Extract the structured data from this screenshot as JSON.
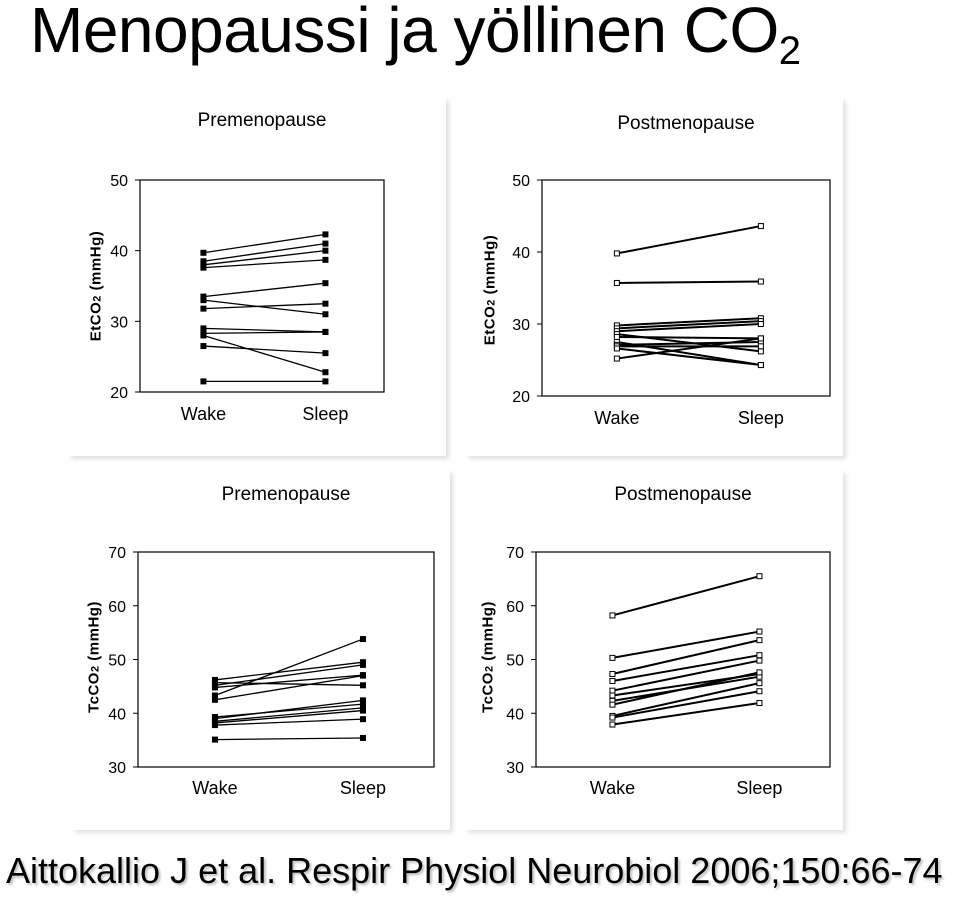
{
  "title": {
    "main": "Menopaussi ja yöllinen CO",
    "subscript": "2"
  },
  "citation": "Aittokallio J et al. Respir Physiol Neurobiol 2006;150:66-74",
  "colors": {
    "line": "#000000",
    "marker_filled": "#000000",
    "marker_open": "#ffffff",
    "highlight": "#800080"
  },
  "chart_data": [
    {
      "type": "line",
      "title": "Premenopause",
      "ylabel": "EtCO2 (mmHg)",
      "ylabel_parts": [
        "EtCO",
        "2",
        " (mmHg)"
      ],
      "categories": [
        "Wake",
        "Sleep"
      ],
      "ylim": [
        20,
        50
      ],
      "yticks": [
        "20",
        "30",
        "40",
        "50"
      ],
      "marker": "filled",
      "series": [
        {
          "values": [
            39.7,
            42.3
          ]
        },
        {
          "values": [
            38.5,
            41.0
          ]
        },
        {
          "values": [
            38.0,
            40.0
          ]
        },
        {
          "values": [
            37.6,
            38.7
          ]
        },
        {
          "values": [
            33.5,
            35.4
          ]
        },
        {
          "values": [
            33.0,
            31.0
          ]
        },
        {
          "values": [
            31.8,
            32.5
          ]
        },
        {
          "values": [
            29.0,
            28.5
          ]
        },
        {
          "values": [
            28.3,
            28.5
          ]
        },
        {
          "values": [
            28.0,
            22.8
          ]
        },
        {
          "values": [
            26.5,
            25.5
          ]
        },
        {
          "values": [
            21.5,
            21.5
          ]
        }
      ]
    },
    {
      "type": "line",
      "title": "Postmenopause",
      "ylabel": "EtCO2 (mmHg)",
      "ylabel_parts": [
        "EtCO",
        "2",
        " (mmHg)"
      ],
      "categories": [
        "Wake",
        "Sleep"
      ],
      "ylim": [
        20,
        50
      ],
      "yticks": [
        "20",
        "30",
        "40",
        "50"
      ],
      "marker": "open",
      "series": [
        {
          "values": [
            39.8,
            43.6
          ]
        },
        {
          "values": [
            35.7,
            35.9
          ]
        },
        {
          "values": [
            29.8,
            30.8
          ]
        },
        {
          "values": [
            29.4,
            30.4
          ]
        },
        {
          "values": [
            29.0,
            30.0
          ]
        },
        {
          "values": [
            28.6,
            26.2
          ]
        },
        {
          "values": [
            28.2,
            28.0
          ]
        },
        {
          "values": [
            27.5,
            24.3
          ]
        },
        {
          "values": [
            27.1,
            27.5
          ]
        },
        {
          "values": [
            26.9,
            26.9
          ]
        },
        {
          "values": [
            26.6,
            24.3
          ]
        },
        {
          "values": [
            25.2,
            28.0
          ]
        }
      ]
    },
    {
      "type": "line",
      "title": "Premenopause",
      "ylabel": "TcCO2 (mmHg)",
      "ylabel_parts": [
        "TcCO",
        "2",
        " (mmHg)"
      ],
      "categories": [
        "Wake",
        "Sleep"
      ],
      "ylim": [
        30,
        70
      ],
      "yticks": [
        "30",
        "40",
        "50",
        "60",
        "70"
      ],
      "marker": "filled",
      "series": [
        {
          "values": [
            46.2,
            49.5
          ]
        },
        {
          "values": [
            45.7,
            45.2
          ]
        },
        {
          "values": [
            45.2,
            49.0
          ]
        },
        {
          "values": [
            44.8,
            47.1
          ]
        },
        {
          "values": [
            43.3,
            53.8
          ]
        },
        {
          "values": [
            42.5,
            47.0
          ]
        },
        {
          "values": [
            39.3,
            41.7
          ]
        },
        {
          "values": [
            39.0,
            42.4
          ]
        },
        {
          "values": [
            38.5,
            41.0
          ]
        },
        {
          "values": [
            38.2,
            40.5
          ]
        },
        {
          "values": [
            37.8,
            38.9
          ]
        },
        {
          "values": [
            35.1,
            35.4
          ]
        }
      ]
    },
    {
      "type": "line",
      "title": "Postmenopause",
      "ylabel": "TcCO2 (mmHg)",
      "ylabel_parts": [
        "TcCO",
        "2",
        " (mmHg)"
      ],
      "categories": [
        "Wake",
        "Sleep"
      ],
      "ylim": [
        30,
        70
      ],
      "yticks": [
        "30",
        "40",
        "50",
        "60",
        "70"
      ],
      "marker": "open",
      "series": [
        {
          "values": [
            58.2,
            65.5
          ]
        },
        {
          "values": [
            50.3,
            55.2
          ]
        },
        {
          "values": [
            47.3,
            53.6
          ]
        },
        {
          "values": [
            46.0,
            50.8
          ]
        },
        {
          "values": [
            44.2,
            49.8
          ]
        },
        {
          "values": [
            43.3,
            47.3
          ]
        },
        {
          "values": [
            42.3,
            46.8
          ]
        },
        {
          "values": [
            41.6,
            47.6
          ]
        },
        {
          "values": [
            39.5,
            45.6
          ]
        },
        {
          "values": [
            39.2,
            44.1
          ]
        },
        {
          "values": [
            37.9,
            41.9
          ]
        }
      ]
    }
  ]
}
